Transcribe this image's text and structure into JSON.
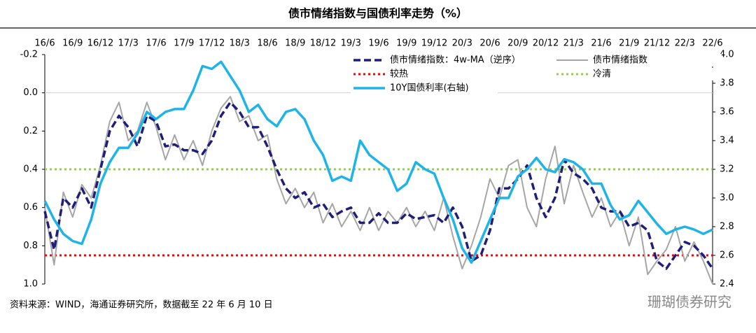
{
  "chart_data": {
    "type": "line",
    "title": "债市情绪指数与国债利率走势（%）",
    "source": "资料来源：WIND，海通证券研究所，数据截至 22 年 6 月 10 日",
    "watermark": "珊瑚债券研究",
    "categories": [
      "16/6",
      null,
      null,
      "16/9",
      null,
      null,
      "16/12",
      null,
      null,
      "17/3",
      null,
      null,
      "17/6",
      null,
      null,
      "17/9",
      null,
      null,
      "17/12",
      null,
      null,
      "18/3",
      null,
      null,
      "18/6",
      null,
      null,
      "18/9",
      null,
      null,
      "18/12",
      null,
      null,
      "19/3",
      null,
      null,
      "19/6",
      null,
      null,
      "19/9",
      null,
      null,
      "19/12",
      null,
      null,
      "20/3",
      null,
      null,
      "20/6",
      null,
      null,
      "20/9",
      null,
      null,
      "20/12",
      null,
      null,
      "21/3",
      null,
      null,
      "21/6",
      null,
      null,
      "21/9",
      null,
      null,
      "21/12",
      null,
      null,
      "22/3",
      null,
      null,
      "22/6"
    ],
    "ylim": [
      -0.2,
      1.0
    ],
    "y_reversed": true,
    "yticks": [
      -0.2,
      {
        "value": 0,
        "label": "0.0"
      },
      0.2,
      0.4,
      0.6,
      0.8,
      {
        "value": 1,
        "label": "1.0"
      }
    ],
    "y2lim": [
      2.4,
      4.0
    ],
    "y2ticks": [
      2.4,
      2.6,
      2.8,
      {
        "value": 3,
        "label": "3.0"
      },
      3.2,
      3.4,
      3.6,
      3.8,
      {
        "value": 4,
        "label": "4.0"
      }
    ],
    "zero_line": true,
    "series": [
      {
        "name": "债市情绪指数：4w-MA（逆序）",
        "color": "#1f1f7a",
        "style": "dashed",
        "values": [
          0.62,
          0.82,
          0.55,
          0.6,
          0.5,
          0.6,
          0.4,
          0.2,
          0.12,
          0.18,
          0.28,
          0.12,
          0.15,
          0.28,
          0.27,
          0.3,
          0.3,
          0.32,
          0.25,
          0.12,
          0.05,
          0.1,
          0.18,
          0.18,
          0.28,
          0.4,
          0.5,
          0.55,
          0.52,
          0.6,
          0.58,
          0.65,
          0.62,
          0.6,
          0.68,
          0.68,
          0.63,
          0.68,
          0.68,
          0.63,
          0.66,
          0.65,
          0.64,
          0.68,
          0.6,
          0.7,
          0.88,
          0.85,
          0.72,
          0.5,
          0.5,
          0.45,
          0.38,
          0.55,
          0.65,
          0.55,
          0.35,
          0.42,
          0.45,
          0.5,
          0.6,
          0.62,
          0.62,
          0.7,
          0.68,
          0.72,
          0.88,
          0.92,
          0.85,
          0.78,
          0.8,
          0.85,
          0.92
        ]
      },
      {
        "name": "债市情绪指数",
        "color": "#a6a6a6",
        "style": "solid",
        "values": [
          0.6,
          0.9,
          0.52,
          0.65,
          0.48,
          0.55,
          0.38,
          0.15,
          0.05,
          0.25,
          0.2,
          0.05,
          0.18,
          0.35,
          0.22,
          0.35,
          0.25,
          0.38,
          0.2,
          0.08,
          0.02,
          0.15,
          0.12,
          0.25,
          0.22,
          0.45,
          0.58,
          0.5,
          0.6,
          0.52,
          0.68,
          0.58,
          0.7,
          0.62,
          0.72,
          0.6,
          0.72,
          0.62,
          0.68,
          0.6,
          0.7,
          0.62,
          0.72,
          0.55,
          0.75,
          0.92,
          0.8,
          0.65,
          0.45,
          0.55,
          0.38,
          0.35,
          0.6,
          0.7,
          0.45,
          0.28,
          0.58,
          0.38,
          0.52,
          0.65,
          0.55,
          0.7,
          0.62,
          0.8,
          0.65,
          0.95,
          0.88,
          0.82,
          0.7,
          0.88,
          0.78,
          0.88,
          1.0
        ]
      },
      {
        "name": "10Y国债利率(右轴)",
        "color": "#1fb4e8",
        "style": "thick",
        "axis": "y2",
        "values": [
          2.98,
          2.85,
          2.75,
          2.7,
          2.68,
          2.85,
          3.1,
          3.25,
          3.35,
          3.35,
          3.45,
          3.6,
          3.55,
          3.6,
          3.62,
          3.62,
          3.75,
          3.92,
          3.9,
          3.95,
          3.85,
          3.75,
          3.6,
          3.65,
          3.55,
          3.5,
          3.6,
          3.62,
          3.55,
          3.4,
          3.3,
          3.12,
          3.15,
          3.12,
          3.4,
          3.3,
          3.25,
          3.2,
          3.05,
          3.1,
          3.25,
          3.2,
          3.17,
          3.0,
          2.85,
          2.65,
          2.55,
          2.7,
          2.85,
          3.0,
          3.0,
          3.15,
          3.2,
          3.28,
          3.2,
          3.18,
          3.27,
          3.25,
          3.2,
          3.1,
          3.1,
          2.95,
          2.85,
          2.88,
          2.98,
          2.9,
          2.82,
          2.75,
          2.78,
          2.8,
          2.78,
          2.75,
          2.78
        ]
      }
    ],
    "reference_lines": [
      {
        "name": "较热",
        "value": 0.85,
        "color": "#ff0000"
      },
      {
        "name": "冷清",
        "value": 0.4,
        "color": "#92d050"
      }
    ]
  }
}
